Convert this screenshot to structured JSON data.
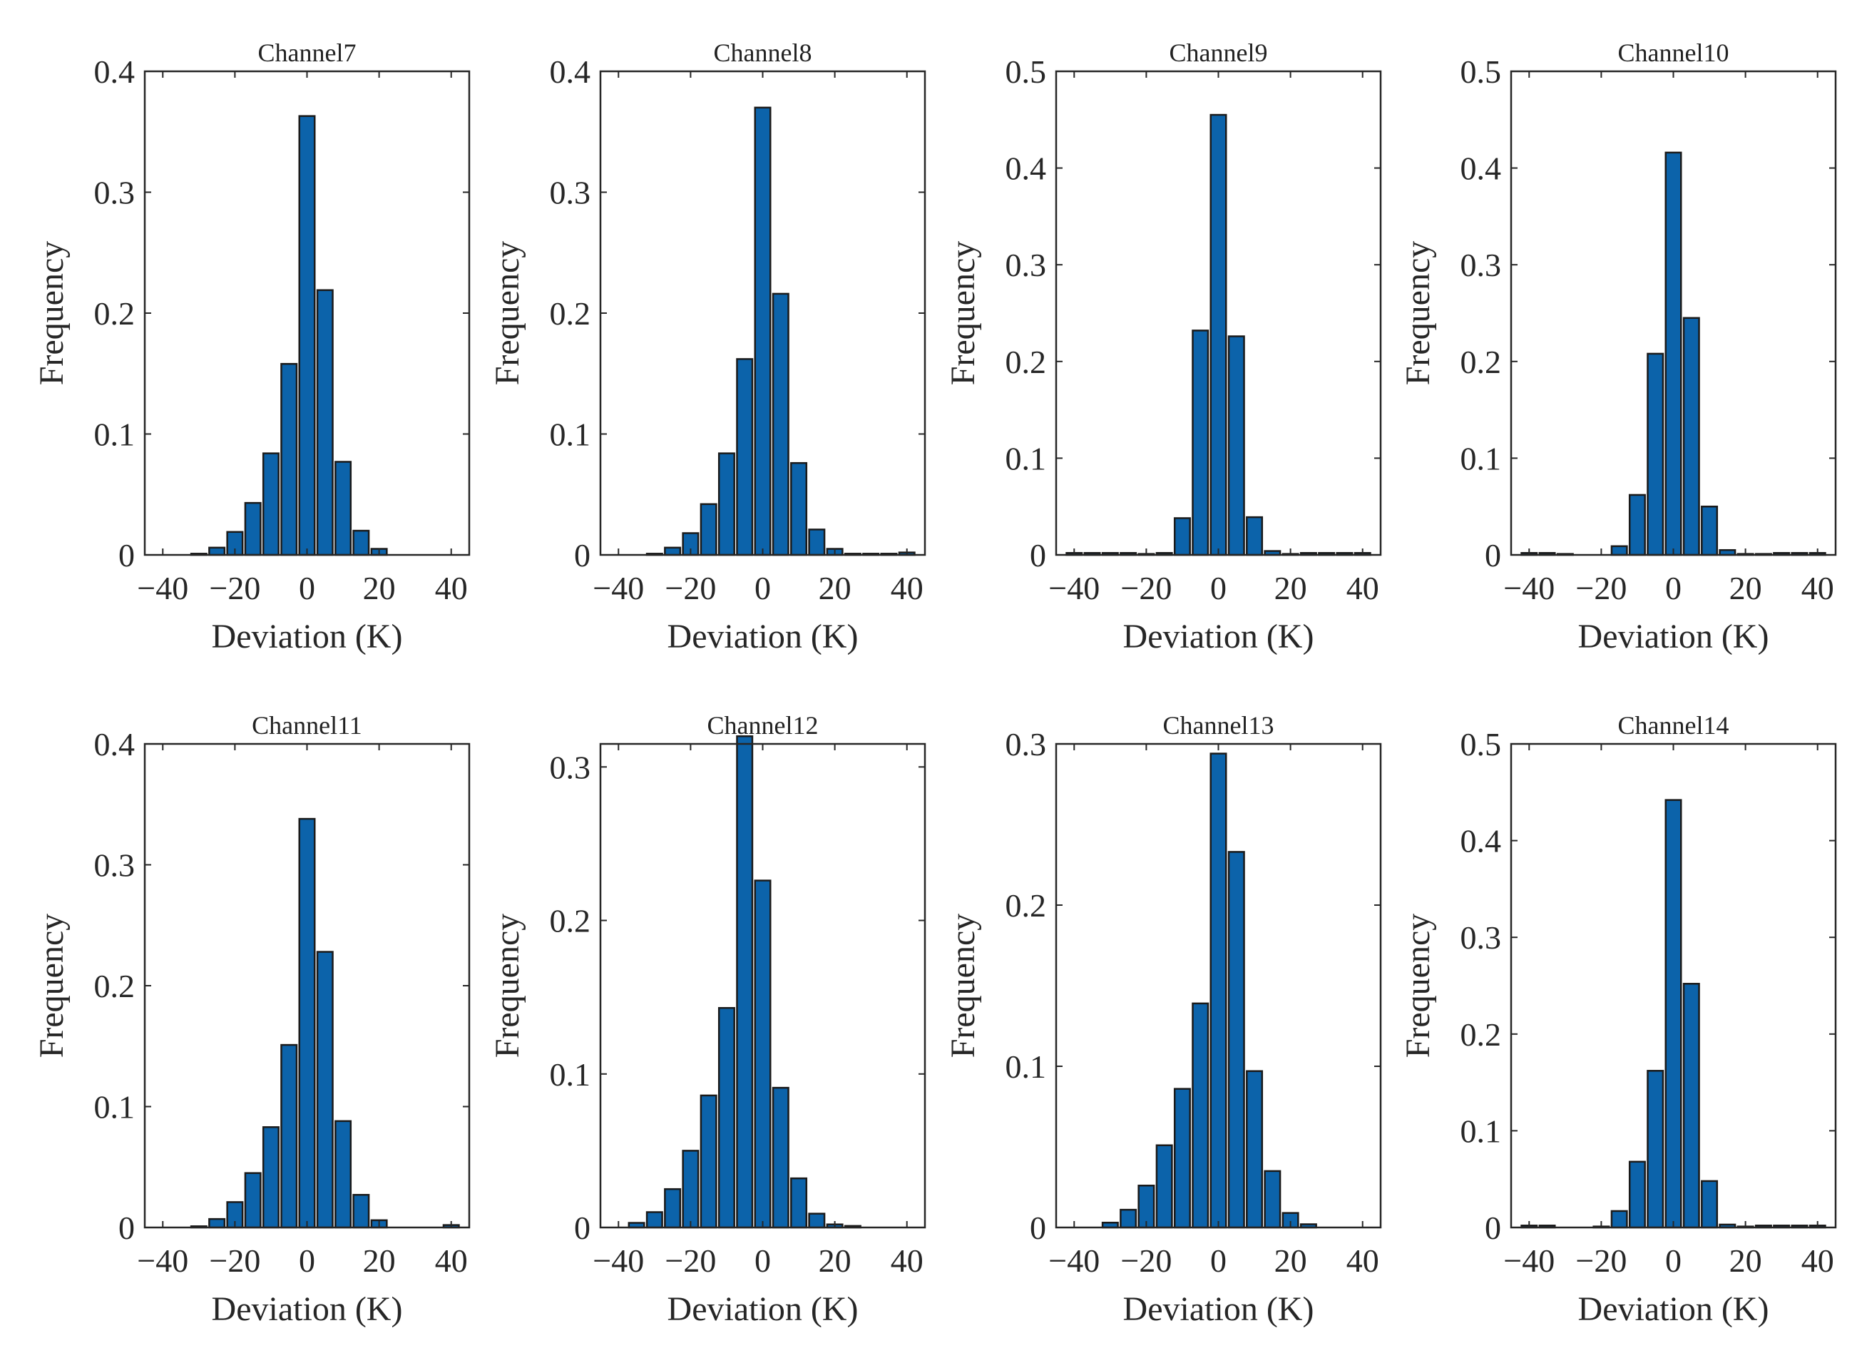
{
  "chart_data": [
    {
      "type": "bar",
      "title": "Channel7",
      "xlabel": "Deviation (K)",
      "ylabel": "Frequency",
      "xlim": [
        -45,
        45
      ],
      "ylim": [
        0,
        0.4
      ],
      "xticks": [
        "−40",
        "−20",
        "0",
        "20",
        "40"
      ],
      "yticks": [
        "0",
        "0.1",
        "0.2",
        "0.3",
        "0.4"
      ],
      "color": "#0c63aa",
      "x": [
        -30,
        -25,
        -20,
        -15,
        -10,
        -5,
        0,
        5,
        10,
        15,
        20,
        25,
        30,
        35,
        40
      ],
      "values": [
        0.001,
        0.006,
        0.019,
        0.043,
        0.084,
        0.158,
        0.363,
        0.219,
        0.077,
        0.02,
        0.005,
        0,
        0,
        0,
        0
      ]
    },
    {
      "type": "bar",
      "title": "Channel8",
      "xlabel": "Deviation (K)",
      "ylabel": "Frequency",
      "xlim": [
        -45,
        45
      ],
      "ylim": [
        0,
        0.4
      ],
      "xticks": [
        "−40",
        "−20",
        "0",
        "20",
        "40"
      ],
      "yticks": [
        "0",
        "0.1",
        "0.2",
        "0.3",
        "0.4"
      ],
      "color": "#0c63aa",
      "x": [
        -30,
        -25,
        -20,
        -15,
        -10,
        -5,
        0,
        5,
        10,
        15,
        20,
        25,
        30,
        35,
        40
      ],
      "values": [
        0.001,
        0.006,
        0.018,
        0.042,
        0.084,
        0.162,
        0.37,
        0.216,
        0.076,
        0.021,
        0.005,
        0.001,
        0.001,
        0.001,
        0.002
      ]
    },
    {
      "type": "bar",
      "title": "Channel9",
      "xlabel": "Deviation (K)",
      "ylabel": "Frequency",
      "xlim": [
        -45,
        45
      ],
      "ylim": [
        0,
        0.5
      ],
      "xticks": [
        "−40",
        "−20",
        "0",
        "20",
        "40"
      ],
      "yticks": [
        "0",
        "0.1",
        "0.2",
        "0.3",
        "0.4",
        "0.5"
      ],
      "color": "#0c63aa",
      "x": [
        -40,
        -35,
        -30,
        -25,
        -20,
        -15,
        -10,
        -5,
        0,
        5,
        10,
        15,
        20,
        25,
        30,
        35,
        40
      ],
      "values": [
        0.002,
        0.002,
        0.002,
        0.002,
        0.001,
        0.002,
        0.038,
        0.232,
        0.455,
        0.226,
        0.039,
        0.004,
        0.001,
        0.002,
        0.002,
        0.002,
        0.002
      ]
    },
    {
      "type": "bar",
      "title": "Channel10",
      "xlabel": "Deviation (K)",
      "ylabel": "Frequency",
      "xlim": [
        -45,
        45
      ],
      "ylim": [
        0,
        0.5
      ],
      "xticks": [
        "−40",
        "−20",
        "0",
        "20",
        "40"
      ],
      "yticks": [
        "0",
        "0.1",
        "0.2",
        "0.3",
        "0.4",
        "0.5"
      ],
      "color": "#0c63aa",
      "x": [
        -40,
        -35,
        -30,
        -25,
        -20,
        -15,
        -10,
        -5,
        0,
        5,
        10,
        15,
        20,
        25,
        30,
        35,
        40
      ],
      "values": [
        0.002,
        0.002,
        0.001,
        0,
        0,
        0.009,
        0.062,
        0.208,
        0.416,
        0.245,
        0.05,
        0.005,
        0.001,
        0.001,
        0.002,
        0.002,
        0.002
      ]
    },
    {
      "type": "bar",
      "title": "Channel11",
      "xlabel": "Deviation (K)",
      "ylabel": "Frequency",
      "xlim": [
        -45,
        45
      ],
      "ylim": [
        0,
        0.4
      ],
      "xticks": [
        "−40",
        "−20",
        "0",
        "20",
        "40"
      ],
      "yticks": [
        "0",
        "0.1",
        "0.2",
        "0.3",
        "0.4"
      ],
      "color": "#0c63aa",
      "x": [
        -30,
        -25,
        -20,
        -15,
        -10,
        -5,
        0,
        5,
        10,
        15,
        20,
        25,
        30,
        35,
        40
      ],
      "values": [
        0.001,
        0.007,
        0.021,
        0.045,
        0.083,
        0.151,
        0.338,
        0.228,
        0.088,
        0.027,
        0.006,
        0,
        0,
        0,
        0.002
      ]
    },
    {
      "type": "bar",
      "title": "Channel12",
      "xlabel": "Deviation (K)",
      "ylabel": "Frequency",
      "xlim": [
        -45,
        45
      ],
      "ylim": [
        0,
        0.315
      ],
      "xticks": [
        "−40",
        "−20",
        "0",
        "20",
        "40"
      ],
      "yticks": [
        "0",
        "0.1",
        "0.2",
        "0.3"
      ],
      "color": "#0c63aa",
      "x": [
        -35,
        -30,
        -25,
        -20,
        -15,
        -10,
        -5,
        0,
        5,
        10,
        15,
        20,
        25
      ],
      "values": [
        0.003,
        0.01,
        0.025,
        0.05,
        0.086,
        0.143,
        0.32,
        0.226,
        0.091,
        0.032,
        0.009,
        0.002,
        0.001
      ]
    },
    {
      "type": "bar",
      "title": "Channel13",
      "xlabel": "Deviation (K)",
      "ylabel": "Frequency",
      "xlim": [
        -45,
        45
      ],
      "ylim": [
        0,
        0.3
      ],
      "xticks": [
        "−40",
        "−20",
        "0",
        "20",
        "40"
      ],
      "yticks": [
        "0",
        "0.1",
        "0.2",
        "0.3"
      ],
      "color": "#0c63aa",
      "x": [
        -30,
        -25,
        -20,
        -15,
        -10,
        -5,
        0,
        5,
        10,
        15,
        20,
        25
      ],
      "values": [
        0.003,
        0.011,
        0.026,
        0.051,
        0.086,
        0.139,
        0.294,
        0.233,
        0.097,
        0.035,
        0.009,
        0.002
      ]
    },
    {
      "type": "bar",
      "title": "Channel14",
      "xlabel": "Deviation (K)",
      "ylabel": "Frequency",
      "xlim": [
        -45,
        45
      ],
      "ylim": [
        0,
        0.5
      ],
      "xticks": [
        "−40",
        "−20",
        "0",
        "20",
        "40"
      ],
      "yticks": [
        "0",
        "0.1",
        "0.2",
        "0.3",
        "0.4",
        "0.5"
      ],
      "color": "#0c63aa",
      "x": [
        -40,
        -35,
        -30,
        -25,
        -20,
        -15,
        -10,
        -5,
        0,
        5,
        10,
        15,
        20,
        25,
        30,
        35,
        40
      ],
      "values": [
        0.002,
        0.002,
        0,
        0,
        0.001,
        0.017,
        0.068,
        0.162,
        0.442,
        0.252,
        0.048,
        0.003,
        0.001,
        0.002,
        0.002,
        0.002,
        0.002
      ]
    }
  ]
}
